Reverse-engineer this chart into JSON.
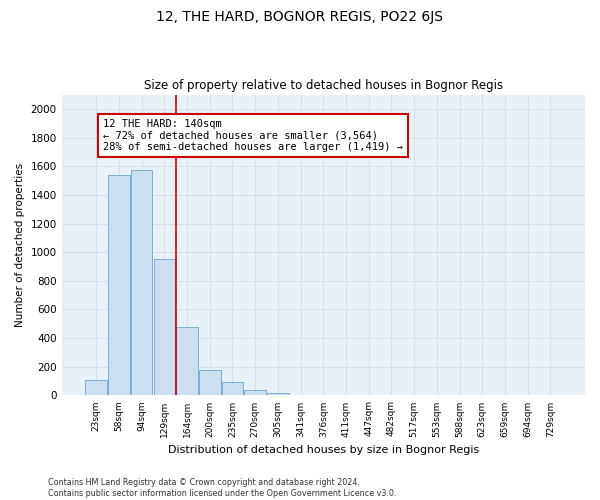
{
  "title": "12, THE HARD, BOGNOR REGIS, PO22 6JS",
  "subtitle": "Size of property relative to detached houses in Bognor Regis",
  "xlabel": "Distribution of detached houses by size in Bognor Regis",
  "ylabel": "Number of detached properties",
  "categories": [
    "23sqm",
    "58sqm",
    "94sqm",
    "129sqm",
    "164sqm",
    "200sqm",
    "235sqm",
    "270sqm",
    "305sqm",
    "341sqm",
    "376sqm",
    "411sqm",
    "447sqm",
    "482sqm",
    "517sqm",
    "553sqm",
    "588sqm",
    "623sqm",
    "659sqm",
    "694sqm",
    "729sqm"
  ],
  "values": [
    110,
    1540,
    1570,
    950,
    475,
    180,
    95,
    35,
    20,
    0,
    0,
    0,
    0,
    0,
    0,
    0,
    0,
    0,
    0,
    0,
    0
  ],
  "bar_color": "#ccdff0",
  "bar_edge_color": "#7bafd4",
  "vline_x_index": 3,
  "vline_color": "#cc0000",
  "annotation_text": "12 THE HARD: 140sqm\n← 72% of detached houses are smaller (3,564)\n28% of semi-detached houses are larger (1,419) →",
  "annotation_box_color": "#ffffff",
  "annotation_box_edge": "#cc0000",
  "ylim": [
    0,
    2100
  ],
  "yticks": [
    0,
    200,
    400,
    600,
    800,
    1000,
    1200,
    1400,
    1600,
    1800,
    2000
  ],
  "grid_color": "#d0dce8",
  "bg_color": "#ffffff",
  "plot_bg_color": "#e8f0f8",
  "footnote": "Contains HM Land Registry data © Crown copyright and database right 2024.\nContains public sector information licensed under the Open Government Licence v3.0."
}
